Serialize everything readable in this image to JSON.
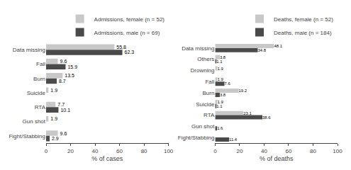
{
  "chart_data": [
    {
      "type": "bar",
      "orientation": "horizontal",
      "xlabel": "% of cases",
      "categories": [
        "Data missing",
        "Fall",
        "Burn",
        "Suicide",
        "RTA",
        "Gun shot",
        "Fight/Stabbing"
      ],
      "series": [
        {
          "name": "Admissions, female (n = 52)",
          "color": "#c8c8c8",
          "values": [
            55.8,
            9.6,
            13.5,
            1.9,
            7.7,
            1.9,
            9.6
          ],
          "value_labels": [
            "55.8",
            "9.6",
            "13.5",
            "1.9",
            "7.7",
            "1.9",
            "9.6"
          ]
        },
        {
          "name": "Admissions, male (n = 69)",
          "color": "#4a4a4a",
          "values": [
            62.3,
            15.9,
            8.7,
            0.0,
            10.1,
            0.0,
            2.9
          ],
          "value_labels": [
            "62.3",
            "15.9",
            "8.7",
            null,
            "10.1",
            null,
            "2.9"
          ]
        }
      ],
      "xlim": [
        0,
        100
      ],
      "xticks": [
        0,
        20,
        40,
        60,
        80,
        100
      ],
      "data_labels": true,
      "legend": "upper right",
      "grid": false
    },
    {
      "type": "bar",
      "orientation": "horizontal",
      "xlabel": "% of deaths",
      "categories": [
        "Data missing",
        "Others",
        "Drowning",
        "Fall",
        "Burn",
        "Suicide",
        "RTA",
        "Gun shot",
        "Fight/Stabbing"
      ],
      "series": [
        {
          "name": "Deaths, female (n = 52)",
          "color": "#c8c8c8",
          "values": [
            48.1,
            3.8,
            1.9,
            1.9,
            19.2,
            1.9,
            23.1,
            0.0,
            0.0
          ],
          "value_labels": [
            "48.1",
            "3.8",
            "1.9",
            "1.9",
            "19.2",
            "1.9",
            "23.1",
            null,
            null
          ]
        },
        {
          "name": "Deaths, male (n = 184)",
          "color": "#4a4a4a",
          "values": [
            34.8,
            1.1,
            0.0,
            7.6,
            3.8,
            1.1,
            38.6,
            1.6,
            11.4
          ],
          "value_labels": [
            "34.8",
            "1.1",
            null,
            "7.6",
            "3.8",
            "1.1",
            "38.6",
            "1.6",
            "11.4"
          ]
        }
      ],
      "xlim": [
        0,
        100
      ],
      "xticks": [
        0,
        20,
        40,
        60,
        80,
        100
      ],
      "data_labels": true,
      "legend": "upper right",
      "grid": false
    }
  ]
}
